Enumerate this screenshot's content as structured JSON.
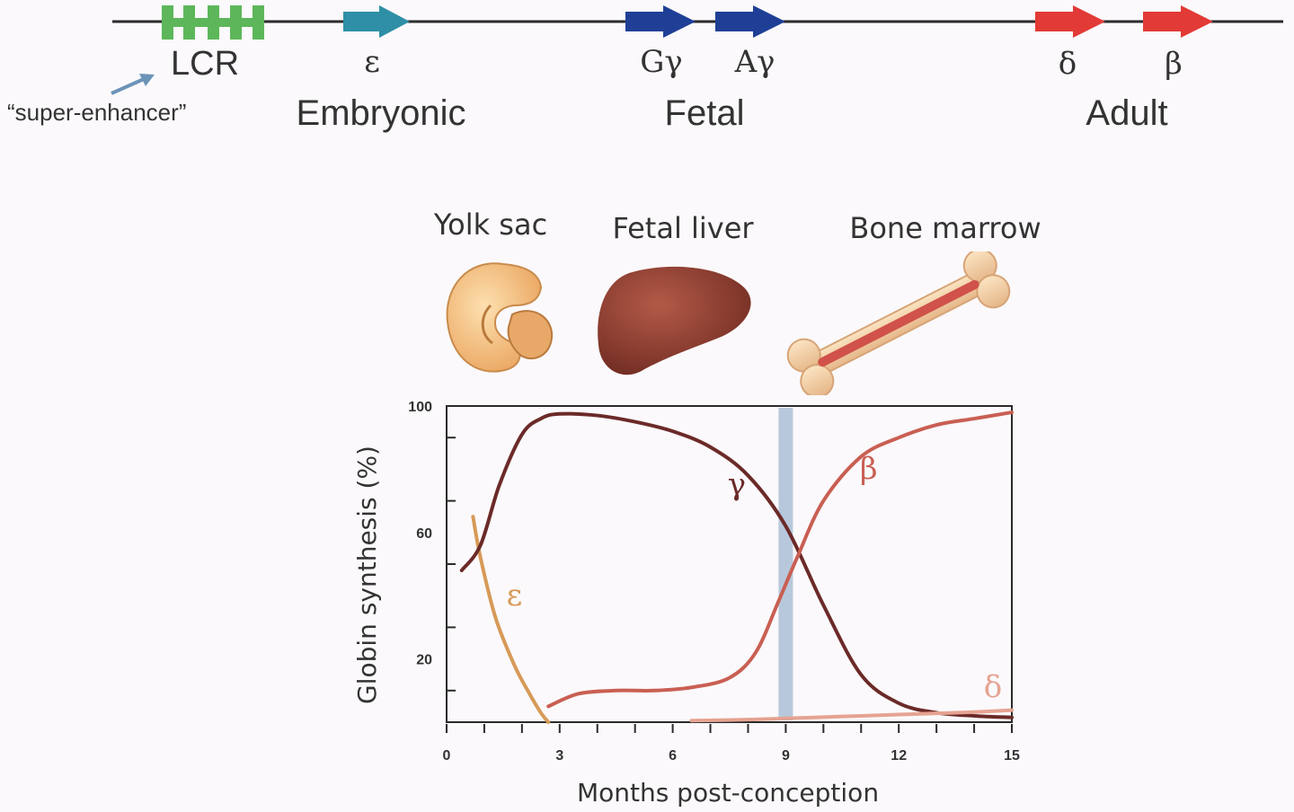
{
  "locus": {
    "lcr_label": "LCR",
    "super_enhancer_label": "“super-enhancer”",
    "genes": [
      {
        "id": "epsilon",
        "label": "ε",
        "color": "#2e8fa6"
      },
      {
        "id": "g-gamma",
        "label": "Gγ",
        "color": "#1f3f96"
      },
      {
        "id": "a-gamma",
        "label": "Aγ",
        "color": "#1f3f96"
      },
      {
        "id": "delta",
        "label": "δ",
        "color": "#e23a36"
      },
      {
        "id": "beta",
        "label": "β",
        "color": "#e23a36"
      }
    ],
    "lcr_color": "#5db75a",
    "stages": [
      "Embryonic",
      "Fetal",
      "Adult"
    ]
  },
  "tissues": [
    {
      "label": "Yolk sac",
      "icon": "yolk-sac-icon"
    },
    {
      "label": "Fetal liver",
      "icon": "fetal-liver-icon"
    },
    {
      "label": "Bone marrow",
      "icon": "bone-icon"
    }
  ],
  "chart_data": {
    "type": "line",
    "xlabel": "Months post-conception",
    "ylabel": "Globin synthesis (%)",
    "xlim": [
      0,
      15
    ],
    "ylim": [
      0,
      100
    ],
    "xticks": [
      0,
      3,
      6,
      9,
      12,
      15
    ],
    "yticks": [
      20,
      60,
      100
    ],
    "marker_x": 9,
    "series": [
      {
        "name": "ε",
        "color": "#d79a58",
        "x": [
          0.7,
          0.9,
          1.3,
          1.8,
          2.2,
          2.5,
          2.7
        ],
        "y": [
          65,
          52,
          33,
          18,
          9,
          3,
          0
        ],
        "label_pos": [
          1.8,
          37
        ]
      },
      {
        "name": "γ",
        "color": "#6b2a28",
        "x": [
          0.4,
          0.9,
          1.4,
          2.0,
          2.5,
          3.0,
          4.0,
          5.0,
          6.0,
          7.0,
          8.0,
          9.0,
          10.0,
          11.0,
          12.0,
          13.0,
          14.0,
          15.0
        ],
        "y": [
          48,
          56,
          75,
          91,
          96,
          97.5,
          97,
          95,
          92,
          87,
          78,
          62,
          37,
          15,
          6,
          3,
          2,
          1.5
        ],
        "label_pos": [
          7.7,
          72
        ]
      },
      {
        "name": "β",
        "color": "#c95f53",
        "x": [
          2.7,
          3.5,
          4.5,
          5.5,
          6.5,
          7.5,
          8.2,
          8.8,
          9.3,
          10.0,
          11.0,
          12.0,
          13.0,
          14.0,
          15.0
        ],
        "y": [
          5,
          9,
          10,
          10,
          11,
          14,
          22,
          38,
          52,
          70,
          84,
          90,
          94,
          96,
          98
        ],
        "label_pos": [
          11.2,
          77
        ]
      },
      {
        "name": "δ",
        "color": "#e6a392",
        "x": [
          6.5,
          8.0,
          9.0,
          10.0,
          11.0,
          12.0,
          13.0,
          14.0,
          15.0
        ],
        "y": [
          0.5,
          0.8,
          1.2,
          1.6,
          2.0,
          2.4,
          2.8,
          3.2,
          3.8
        ],
        "label_pos": [
          14.5,
          8
        ]
      }
    ]
  }
}
